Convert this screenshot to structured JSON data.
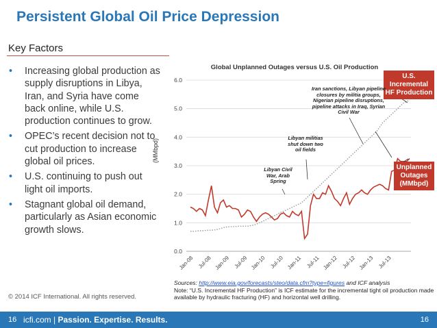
{
  "title": "Persistent Global Oil Price Depression",
  "key_factors": {
    "heading": "Key Factors",
    "bullets": [
      "Increasing global production as supply disruptions in Libya, Iran, and Syria have come back online, while U.S. production continues to grow.",
      "OPEC’s recent decision not to cut production to increase global oil prices.",
      "U.S. continuing to push out light oil imports.",
      "Stagnant global oil demand, particularly as Asian economic growth slows."
    ]
  },
  "copyright": "© 2014 ICF International. All rights reserved.",
  "footer": {
    "page_left": "16",
    "site": "icfi.com",
    "separator": "|",
    "tagline": "Passion. Expertise. Results.",
    "page_right": "16"
  },
  "source_note": {
    "sources_prefix": "Sources: ",
    "link": "http://www.eia.gov/forecasts/steo/data.cfm?type=figures",
    "sources_suffix": " and ICF analysis",
    "note": "Note: “U.S. Incremental HF Production” is ICF estimate for the incremental tight oil production made available by hydraulic fracturing (HF) and horizontal well drilling."
  },
  "callouts": {
    "hf": "U.S. Incremental HF Production",
    "outages": "Unplanned Outages (MMbpd)"
  },
  "colors": {
    "accent": "#2a77b8",
    "callout": "#c0392b",
    "outages_line": "#c0392b",
    "hf_line": "#9a9a9a"
  },
  "chart_data": {
    "type": "line",
    "title": "Global Unplanned Outages versus U.S. Oil Production",
    "ylabel": "(MMbpd)",
    "xlabel": "",
    "ylim": [
      0,
      6
    ],
    "yticks": [
      "0.0",
      "1.0",
      "2.0",
      "3.0",
      "4.0",
      "5.0",
      "6.0"
    ],
    "tick_labels": [
      "Jan-08",
      "Jul-08",
      "Jan-09",
      "Jul-09",
      "Jan-10",
      "Jul-10",
      "Jan-11",
      "Jul-11",
      "Jan-12",
      "Jul-12",
      "Jan-13",
      "Jul-13"
    ],
    "annotations": [
      {
        "text": "Libyan Civil War, Arab Spring",
        "month_index": 39
      },
      {
        "text": "Libyan militias shut down two oil fields",
        "month_index": 46
      },
      {
        "text": "Iran sanctions, Libyan pipeline closures by militia groups, Nigerian pipeline disruptions, pipeline attacks in Iraq, Syrian Civil War",
        "month_index": 68
      }
    ],
    "series": [
      {
        "name": "Unplanned Outages (MMbpd)",
        "style": "solid",
        "values": [
          1.55,
          1.5,
          1.4,
          1.5,
          1.45,
          1.25,
          1.8,
          2.3,
          1.55,
          1.35,
          1.7,
          1.8,
          1.55,
          1.6,
          1.5,
          1.5,
          1.45,
          1.2,
          1.3,
          1.45,
          1.4,
          1.2,
          1.05,
          1.2,
          1.3,
          1.35,
          1.3,
          1.2,
          1.1,
          1.15,
          1.3,
          1.35,
          1.25,
          1.2,
          1.4,
          1.3,
          1.25,
          1.4,
          0.45,
          0.6,
          1.6,
          2.0,
          1.85,
          1.85,
          2.05,
          2.0,
          2.3,
          2.1,
          1.85,
          1.75,
          1.6,
          1.85,
          2.05,
          1.65,
          1.85,
          2.0,
          2.05,
          2.15,
          2.05,
          2.0,
          2.15,
          2.25,
          2.3,
          2.35,
          2.3,
          2.2,
          2.15,
          2.8,
          2.85,
          3.25,
          3.15,
          3.15,
          3.15,
          3.25
        ]
      },
      {
        "name": "U.S. Incremental HF Production",
        "style": "dotted",
        "values": [
          0.7,
          0.7,
          0.71,
          0.72,
          0.72,
          0.73,
          0.74,
          0.74,
          0.75,
          0.77,
          0.8,
          0.83,
          0.85,
          0.86,
          0.87,
          0.87,
          0.88,
          0.88,
          0.88,
          0.88,
          0.9,
          0.92,
          0.95,
          1.0,
          1.05,
          1.1,
          1.15,
          1.2,
          1.25,
          1.3,
          1.36,
          1.4,
          1.45,
          1.5,
          1.55,
          1.6,
          1.65,
          1.7,
          1.8,
          1.9,
          2.0,
          2.1,
          2.2,
          2.3,
          2.4,
          2.5,
          2.6,
          2.7,
          2.8,
          2.9,
          3.0,
          3.1,
          3.2,
          3.3,
          3.4,
          3.5,
          3.6,
          3.7,
          3.8,
          3.9,
          4.0,
          4.1,
          4.2,
          4.35,
          4.5,
          4.6,
          4.7,
          4.8,
          4.9,
          5.0,
          5.1,
          5.2,
          5.25,
          5.3
        ]
      }
    ]
  }
}
